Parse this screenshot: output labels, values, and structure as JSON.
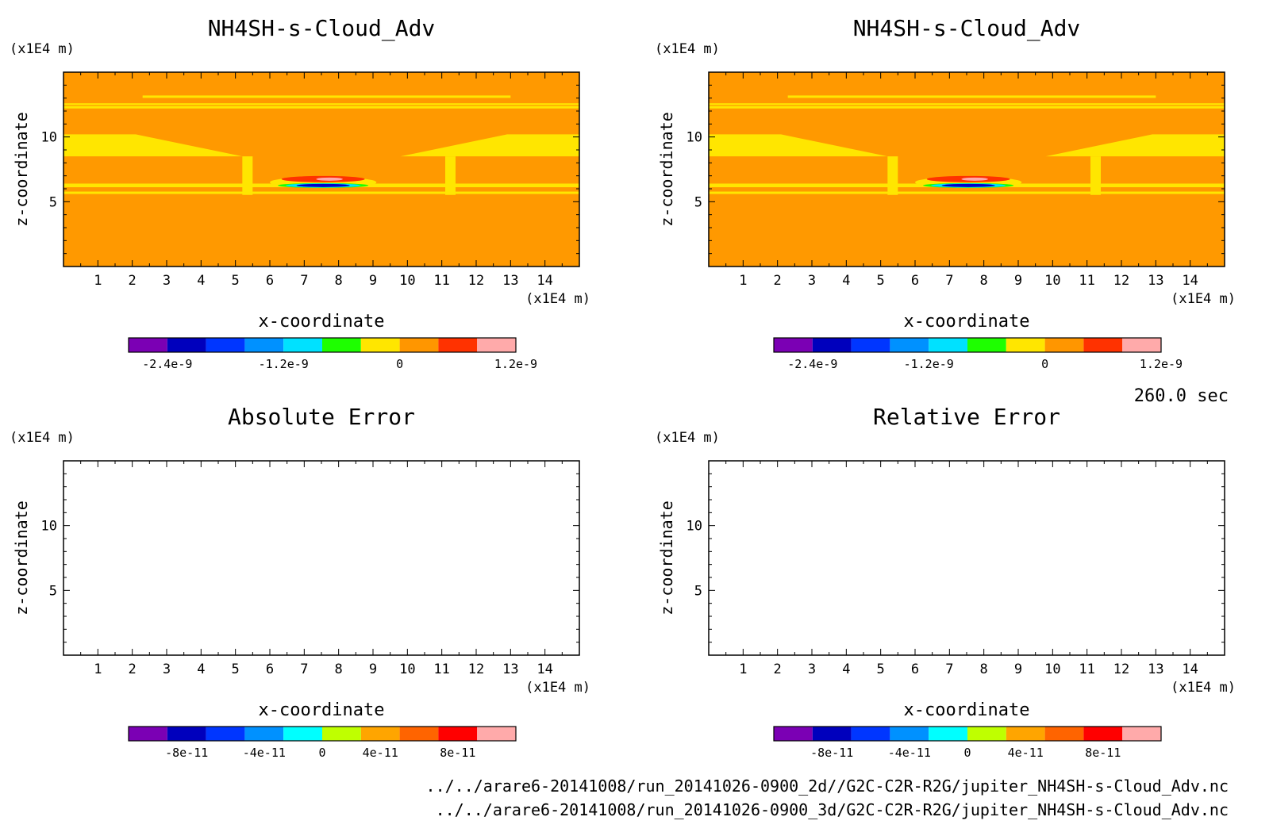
{
  "time_label": "260.0 sec",
  "files": [
    "../../arare6-20141008/run_20141026-0900_2d//G2C-C2R-R2G/jupiter_NH4SH-s-Cloud_Adv.nc",
    "../../arare6-20141008/run_20141026-0900_3d/G2C-C2R-R2G/jupiter_NH4SH-s-Cloud_Adv.nc"
  ],
  "chart_data": [
    {
      "type": "heatmap",
      "title": "NH4SH-s-Cloud_Adv",
      "xlabel": "x-coordinate",
      "ylabel": "z-coordinate",
      "x_unit": "(x1E4 m)",
      "y_unit": "(x1E4 m)",
      "xlim": [
        0,
        15
      ],
      "ylim": [
        0,
        15
      ],
      "x_ticks": [
        1,
        2,
        3,
        4,
        5,
        6,
        7,
        8,
        9,
        10,
        11,
        12,
        13,
        14
      ],
      "y_ticks": [
        5,
        10
      ],
      "field": {
        "background_level": "0",
        "layers": [
          {
            "z": [
              12.2,
              12.6
            ],
            "level": "0 to 0.4e-9",
            "color": "#ffe600"
          },
          {
            "z": [
              9.2,
              10.2
            ],
            "level": "0 to 0.4e-9",
            "color": "#ffe600"
          },
          {
            "z": [
              5.6,
              6.4
            ],
            "level": "0 to 0.4e-9",
            "color": "#ffe600"
          },
          {
            "z": [
              6.1,
              6.9
            ],
            "x": [
              6.0,
              9.1
            ],
            "level": "min -2.4e-9 to max 1.2e-9",
            "color": "#0000cc"
          }
        ]
      },
      "colorbar": {
        "colors": [
          "#7b00b4",
          "#0000bd",
          "#0036ff",
          "#0091ff",
          "#00e1ff",
          "#1eff00",
          "#ffe600",
          "#ff9600",
          "#ff3200",
          "#ffaaaa"
        ],
        "tick_labels": [
          "-2.4e-9",
          "-1.2e-9",
          "0",
          "1.2e-9"
        ]
      }
    },
    {
      "type": "heatmap",
      "title": "NH4SH-s-Cloud_Adv",
      "xlabel": "x-coordinate",
      "ylabel": "z-coordinate",
      "x_unit": "(x1E4 m)",
      "y_unit": "(x1E4 m)",
      "xlim": [
        0,
        15
      ],
      "ylim": [
        0,
        15
      ],
      "x_ticks": [
        1,
        2,
        3,
        4,
        5,
        6,
        7,
        8,
        9,
        10,
        11,
        12,
        13,
        14
      ],
      "y_ticks": [
        5,
        10
      ],
      "field": {
        "background_level": "0",
        "layers": [
          {
            "z": [
              12.2,
              12.6
            ],
            "level": "0 to 0.4e-9",
            "color": "#ffe600"
          },
          {
            "z": [
              9.2,
              10.2
            ],
            "level": "0 to 0.4e-9",
            "color": "#ffe600"
          },
          {
            "z": [
              5.6,
              6.4
            ],
            "level": "0 to 0.4e-9",
            "color": "#ffe600"
          },
          {
            "z": [
              6.1,
              6.9
            ],
            "x": [
              6.0,
              9.1
            ],
            "level": "min -2.4e-9 to max 1.2e-9",
            "color": "#0000cc"
          }
        ]
      },
      "colorbar": {
        "colors": [
          "#7b00b4",
          "#0000bd",
          "#0036ff",
          "#0091ff",
          "#00e1ff",
          "#1eff00",
          "#ffe600",
          "#ff9600",
          "#ff3200",
          "#ffaaaa"
        ],
        "tick_labels": [
          "-2.4e-9",
          "-1.2e-9",
          "0",
          "1.2e-9"
        ]
      }
    },
    {
      "type": "heatmap",
      "title": "Absolute Error",
      "xlabel": "x-coordinate",
      "ylabel": "z-coordinate",
      "x_unit": "(x1E4 m)",
      "y_unit": "(x1E4 m)",
      "xlim": [
        0,
        15
      ],
      "ylim": [
        0,
        15
      ],
      "x_ticks": [
        1,
        2,
        3,
        4,
        5,
        6,
        7,
        8,
        9,
        10,
        11,
        12,
        13,
        14
      ],
      "y_ticks": [
        5,
        10
      ],
      "field": null,
      "colorbar": {
        "colors": [
          "#7b00b4",
          "#0000bd",
          "#0036ff",
          "#0091ff",
          "#00ffff",
          "#bfff00",
          "#ffa500",
          "#ff6400",
          "#ff0000",
          "#ffaaaa"
        ],
        "tick_labels": [
          "-8e-11",
          "-4e-11",
          "0",
          "4e-11",
          "8e-11"
        ]
      }
    },
    {
      "type": "heatmap",
      "title": "Relative Error",
      "xlabel": "x-coordinate",
      "ylabel": "z-coordinate",
      "x_unit": "(x1E4 m)",
      "y_unit": "(x1E4 m)",
      "xlim": [
        0,
        15
      ],
      "ylim": [
        0,
        15
      ],
      "x_ticks": [
        1,
        2,
        3,
        4,
        5,
        6,
        7,
        8,
        9,
        10,
        11,
        12,
        13,
        14
      ],
      "y_ticks": [
        5,
        10
      ],
      "field": null,
      "colorbar": {
        "colors": [
          "#7b00b4",
          "#0000bd",
          "#0036ff",
          "#0091ff",
          "#00ffff",
          "#bfff00",
          "#ffa500",
          "#ff6400",
          "#ff0000",
          "#ffaaaa"
        ],
        "tick_labels": [
          "-8e-11",
          "-4e-11",
          "0",
          "4e-11",
          "8e-11"
        ]
      }
    }
  ],
  "colors": {
    "field_background": "#ff9900",
    "band": "#ffe600",
    "blob_top": "#ff3200",
    "blob_top_light": "#ffaaaa",
    "blob_mid": "#0000cc",
    "blob_low": "#00e1ff",
    "blob_edge": "#1eff00"
  }
}
